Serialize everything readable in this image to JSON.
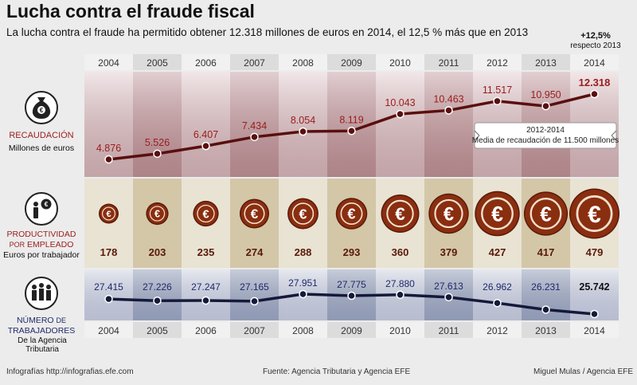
{
  "title": "Lucha contra el fraude fiscal",
  "subtitle": "La lucha contra el fraude ha permitido obtener 12.318 millones de euros en 2014, el 12,5 % más que en 2013",
  "highlight": {
    "value": "+12,5%",
    "text": "respecto 2013"
  },
  "sections": {
    "recaudacion": {
      "label": "RECAUDACIÓN",
      "unit": "Millones de euros"
    },
    "productividad": {
      "label_a": "PRODUCTIVIDAD",
      "label_b1": "POR",
      "label_b2": "EMPLEADO",
      "unit": "Euros por trabajador"
    },
    "trabajadores": {
      "label_a": "NÚMERO",
      "label_a2": "DE",
      "label_b": "TRABAJADORES",
      "unit": "De la Agencia Tributaria"
    }
  },
  "annotation": {
    "period": "2012-2014",
    "text": "Media de recaudación de 11.500 millones"
  },
  "footer": {
    "left": "Infografías http://infografias.efe.com",
    "center": "Fuente: Agencia Tributaria y Agencia EFE",
    "right": "Miguel Mulas / Agencia EFE"
  },
  "icons": {
    "money_bag": "money-bag-icon",
    "worker": "worker-euro-icon",
    "people": "people-group-icon",
    "coin": "euro-coin-icon"
  },
  "colors": {
    "red": "#9b1c1c",
    "blue": "#1f2a6b",
    "coin": "#8a2e10",
    "dark_line": "#5a0f0f"
  },
  "chart_data": [
    {
      "type": "line",
      "x": [
        "2004",
        "2005",
        "2006",
        "2007",
        "2008",
        "2009",
        "2010",
        "2011",
        "2012",
        "2013",
        "2014"
      ],
      "values": [
        4876,
        5526,
        6407,
        7434,
        8054,
        8119,
        10043,
        10463,
        11517,
        10950,
        12318
      ],
      "labels": [
        "4.876",
        "5.526",
        "6.407",
        "7.434",
        "8.054",
        "8.119",
        "10.043",
        "10.463",
        "11.517",
        "10.950",
        "12.318"
      ],
      "ylabel": "Millones de euros"
    },
    {
      "type": "bar",
      "x": [
        "2004",
        "2005",
        "2006",
        "2007",
        "2008",
        "2009",
        "2010",
        "2011",
        "2012",
        "2013",
        "2014"
      ],
      "values": [
        178,
        203,
        235,
        274,
        288,
        293,
        360,
        379,
        427,
        417,
        479
      ],
      "ylabel": "Euros por trabajador"
    },
    {
      "type": "line",
      "x": [
        "2004",
        "2005",
        "2006",
        "2007",
        "2008",
        "2009",
        "2010",
        "2011",
        "2012",
        "2013",
        "2014"
      ],
      "values": [
        27415,
        27226,
        27247,
        27165,
        27951,
        27775,
        27880,
        27613,
        26962,
        26231,
        25742
      ],
      "labels": [
        "27.415",
        "27.226",
        "27.247",
        "27.165",
        "27.951",
        "27.775",
        "27.880",
        "27.613",
        "26.962",
        "26.231",
        "25.742"
      ],
      "ylabel": "De la Agencia Tributaria"
    }
  ]
}
